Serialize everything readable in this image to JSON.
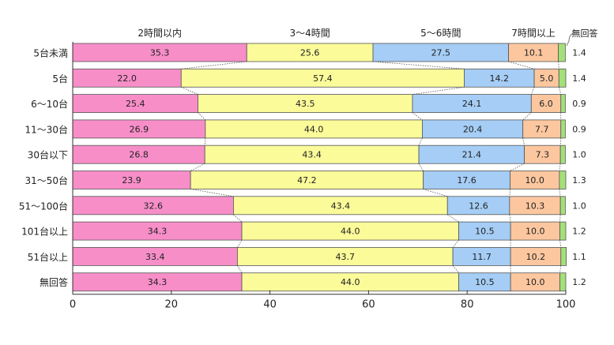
{
  "chart_data": {
    "type": "stacked-bar-horizontal",
    "title": "",
    "xlabel": "",
    "ylabel": "",
    "xlim": [
      0,
      100
    ],
    "xticks": [
      0,
      20,
      40,
      60,
      80,
      100
    ],
    "categories": [
      "5台未満",
      "5台",
      "6〜10台",
      "11〜30台",
      "30台以下",
      "31〜50台",
      "51〜100台",
      "101台以上",
      "51台以上",
      "無回答"
    ],
    "series": [
      {
        "name": "2時間以内",
        "color": "#f78ec8",
        "values": [
          35.3,
          22.0,
          25.4,
          26.9,
          26.8,
          23.9,
          32.6,
          34.3,
          33.4,
          34.3
        ]
      },
      {
        "name": "3〜4時間",
        "color": "#fbfb9a",
        "values": [
          25.6,
          57.4,
          43.5,
          44.0,
          43.4,
          47.2,
          43.4,
          44.0,
          43.7,
          44.0
        ]
      },
      {
        "name": "5〜6時間",
        "color": "#a5cdf5",
        "values": [
          27.5,
          14.2,
          24.1,
          20.4,
          21.4,
          17.6,
          12.6,
          10.5,
          11.7,
          10.5
        ]
      },
      {
        "name": "7時間以上",
        "color": "#fcc79f",
        "values": [
          10.1,
          5.0,
          6.0,
          7.7,
          7.3,
          10.0,
          10.3,
          10.0,
          10.2,
          10.0
        ]
      },
      {
        "name": "無回答",
        "color": "#a3e07a",
        "values": [
          1.4,
          1.4,
          0.9,
          0.9,
          1.0,
          1.3,
          1.0,
          1.2,
          1.1,
          1.2
        ]
      }
    ],
    "legend_position": "top",
    "grid": false
  }
}
